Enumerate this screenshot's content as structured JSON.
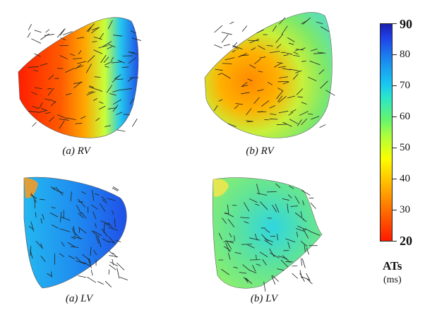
{
  "panels": [
    {
      "id": "a-rv",
      "caption": "(a) RV"
    },
    {
      "id": "b-rv",
      "caption": "(b) RV"
    },
    {
      "id": "a-lv",
      "caption": "(a) LV"
    },
    {
      "id": "b-lv",
      "caption": "(b) LV"
    }
  ],
  "colorbar": {
    "title": "ATs",
    "unit": "(ms)",
    "min_label": "20",
    "max_label": "90",
    "ticks": [
      "80",
      "70",
      "60",
      "50",
      "40",
      "30"
    ],
    "colors": [
      "#ff1a00",
      "#ff7a00",
      "#ffd000",
      "#fbff00",
      "#b0ff3a",
      "#63f56e",
      "#2be6c8",
      "#19c8f2",
      "#1a86f0",
      "#1f3fe8",
      "#1a1fb0"
    ]
  }
}
